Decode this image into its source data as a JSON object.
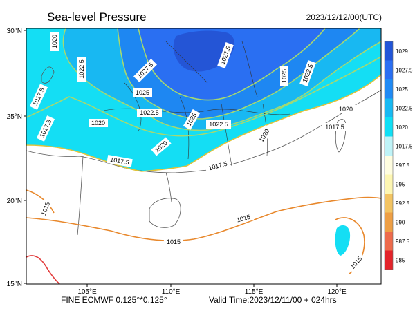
{
  "title": "Sea-level Pressure",
  "valid_time_top": "2023/12/12/00(UTC)",
  "footer_left": "FINE ECMWF 0.125°*0.125°",
  "footer_right": "Valid Time:2023/12/11/00 + 024hrs",
  "axes": {
    "lat_ticks": [
      {
        "label": "30°N"
      },
      {
        "label": "25°N"
      },
      {
        "label": "20°N"
      },
      {
        "label": "15°N"
      }
    ],
    "lon_ticks": [
      {
        "label": "105°E"
      },
      {
        "label": "110°E"
      },
      {
        "label": "115°E"
      },
      {
        "label": "120°E"
      }
    ]
  },
  "colorbar": {
    "levels": [
      {
        "value": "1029",
        "color": "#2255d8"
      },
      {
        "value": "1027.5",
        "color": "#2a6ff2"
      },
      {
        "value": "1025",
        "color": "#1f8af4"
      },
      {
        "value": "1022.5",
        "color": "#18b9f2"
      },
      {
        "value": "1020",
        "color": "#10dff5"
      },
      {
        "value": "1017.5",
        "color": "#bff3f7"
      },
      {
        "value": "997.5",
        "color": "#fffde0"
      },
      {
        "value": "995",
        "color": "#fdf6b2"
      },
      {
        "value": "992.5",
        "color": "#f3c463"
      },
      {
        "value": "990",
        "color": "#ee9f45"
      },
      {
        "value": "987.5",
        "color": "#ee6b4c"
      },
      {
        "value": "985",
        "color": "#e3242b"
      }
    ]
  },
  "contour_labels": [
    {
      "text": "1020"
    },
    {
      "text": "1022.5"
    },
    {
      "text": "1027.5"
    },
    {
      "text": "1027.5"
    },
    {
      "text": "1025"
    },
    {
      "text": "1022.5"
    },
    {
      "text": "1025"
    },
    {
      "text": "1022.5"
    },
    {
      "text": "1017.5"
    },
    {
      "text": "1020"
    },
    {
      "text": "1017.5"
    },
    {
      "text": "1020"
    },
    {
      "text": "1025"
    },
    {
      "text": "1022.5"
    },
    {
      "text": "1020"
    },
    {
      "text": "1020"
    },
    {
      "text": "1017.5"
    },
    {
      "text": "1017.5"
    },
    {
      "text": "1017.5"
    },
    {
      "text": "1015"
    },
    {
      "text": "1015"
    },
    {
      "text": "1015"
    },
    {
      "text": "1015"
    }
  ]
}
